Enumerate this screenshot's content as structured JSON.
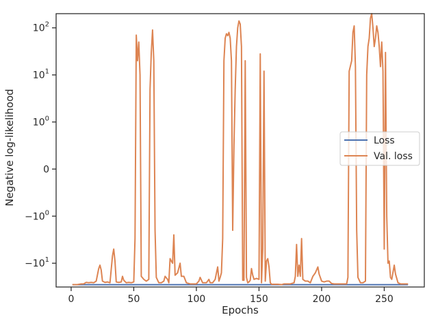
{
  "chart_data": {
    "type": "line",
    "title": "",
    "xlabel": "Epochs",
    "ylabel": "Negative log-likelihood",
    "xlim": [
      -12,
      282
    ],
    "ylim": [
      -32,
      200
    ],
    "yscale": "symlog",
    "ylinthresh": 1,
    "grid": false,
    "legend_position": "center-right",
    "x_ticks": [
      0,
      50,
      100,
      150,
      200,
      250
    ],
    "x_tick_labels": [
      "0",
      "50",
      "100",
      "150",
      "200",
      "250"
    ],
    "y_ticks": [
      -10,
      -1,
      0,
      1,
      10,
      100
    ],
    "y_tick_labels": [
      {
        "base": "−10",
        "exp": "1"
      },
      {
        "base": "−10",
        "exp": "0"
      },
      {
        "base": "0",
        "exp": ""
      },
      {
        "base": "10",
        "exp": "0"
      },
      {
        "base": "10",
        "exp": "1"
      },
      {
        "base": "10",
        "exp": "2"
      }
    ],
    "series": [
      {
        "name": "Loss",
        "color": "#4c72b0",
        "points": [
          [
            1,
            -28.6
          ],
          [
            269,
            -28.6
          ]
        ]
      },
      {
        "name": "Val. loss",
        "color": "#dd8452",
        "points": [
          [
            1,
            -28.5
          ],
          [
            5,
            -28.5
          ],
          [
            8,
            -27.5
          ],
          [
            10,
            -27.5
          ],
          [
            12,
            -25.5
          ],
          [
            14,
            -26
          ],
          [
            16,
            -25.5
          ],
          [
            18,
            -26
          ],
          [
            20,
            -24
          ],
          [
            22,
            -13
          ],
          [
            23,
            -11
          ],
          [
            24,
            -14
          ],
          [
            25,
            -24
          ],
          [
            27,
            -25.5
          ],
          [
            29,
            -25
          ],
          [
            31,
            -26
          ],
          [
            33,
            -7
          ],
          [
            34,
            -5
          ],
          [
            35,
            -9
          ],
          [
            36,
            -25
          ],
          [
            38,
            -25.5
          ],
          [
            40,
            -25
          ],
          [
            41,
            -19
          ],
          [
            42,
            -23
          ],
          [
            44,
            -26
          ],
          [
            46,
            -25.5
          ],
          [
            48,
            -26
          ],
          [
            50,
            -25
          ],
          [
            51,
            -3
          ],
          [
            52,
            70
          ],
          [
            53,
            20
          ],
          [
            54,
            50
          ],
          [
            55,
            10
          ],
          [
            56,
            -19
          ],
          [
            58,
            -22
          ],
          [
            60,
            -24
          ],
          [
            62,
            -22
          ],
          [
            63,
            5
          ],
          [
            64,
            30
          ],
          [
            65,
            90
          ],
          [
            66,
            20
          ],
          [
            67,
            -2
          ],
          [
            68,
            -20
          ],
          [
            70,
            -26
          ],
          [
            72,
            -26
          ],
          [
            74,
            -24
          ],
          [
            75,
            -19
          ],
          [
            77,
            -22
          ],
          [
            78,
            -26
          ],
          [
            79,
            -8
          ],
          [
            80,
            -9
          ],
          [
            81,
            -10
          ],
          [
            82,
            -2.5
          ],
          [
            83,
            -18
          ],
          [
            85,
            -16
          ],
          [
            87,
            -10
          ],
          [
            88,
            -19
          ],
          [
            90,
            -19
          ],
          [
            92,
            -26
          ],
          [
            95,
            -27.5
          ],
          [
            100,
            -27.5
          ],
          [
            102,
            -24
          ],
          [
            103,
            -20
          ],
          [
            105,
            -26
          ],
          [
            108,
            -26
          ],
          [
            110,
            -22
          ],
          [
            111,
            -26
          ],
          [
            113,
            -26
          ],
          [
            115,
            -22
          ],
          [
            117,
            -12
          ],
          [
            118,
            -24
          ],
          [
            119,
            -20
          ],
          [
            120,
            -16
          ],
          [
            121,
            -3
          ],
          [
            122,
            20
          ],
          [
            123,
            60
          ],
          [
            124,
            75
          ],
          [
            125,
            68
          ],
          [
            126,
            80
          ],
          [
            127,
            60
          ],
          [
            128,
            20
          ],
          [
            129,
            -2
          ],
          [
            130,
            0.5
          ],
          [
            131,
            5
          ],
          [
            132,
            40
          ],
          [
            133,
            100
          ],
          [
            134,
            140
          ],
          [
            135,
            120
          ],
          [
            136,
            40
          ],
          [
            137,
            -23
          ],
          [
            138,
            -23
          ],
          [
            139,
            20
          ],
          [
            140,
            -20
          ],
          [
            141,
            -26
          ],
          [
            142,
            -25
          ],
          [
            143,
            -23
          ],
          [
            144,
            -13
          ],
          [
            145,
            -18
          ],
          [
            146,
            -22
          ],
          [
            148,
            -21
          ],
          [
            150,
            -22
          ],
          [
            151,
            28
          ],
          [
            152,
            -26
          ],
          [
            153,
            -5
          ],
          [
            154,
            12
          ],
          [
            155,
            -24
          ],
          [
            156,
            -9
          ],
          [
            157,
            -8
          ],
          [
            158,
            -12
          ],
          [
            159,
            -26
          ],
          [
            160,
            -28
          ],
          [
            165,
            -28
          ],
          [
            168,
            -28.5
          ],
          [
            170,
            -27.5
          ],
          [
            175,
            -27.5
          ],
          [
            178,
            -26
          ],
          [
            179,
            -19
          ],
          [
            180,
            -4
          ],
          [
            181,
            -19
          ],
          [
            182,
            -11
          ],
          [
            183,
            -19
          ],
          [
            184,
            -3
          ],
          [
            185,
            -22
          ],
          [
            187,
            -24
          ],
          [
            189,
            -24
          ],
          [
            191,
            -26
          ],
          [
            193,
            -19
          ],
          [
            195,
            -16
          ],
          [
            197,
            -12
          ],
          [
            198,
            -17
          ],
          [
            200,
            -24
          ],
          [
            202,
            -25
          ],
          [
            204,
            -24
          ],
          [
            206,
            -24
          ],
          [
            208,
            -27
          ],
          [
            210,
            -27.5
          ],
          [
            220,
            -27.5
          ],
          [
            221,
            -20
          ],
          [
            222,
            12
          ],
          [
            224,
            20
          ],
          [
            225,
            80
          ],
          [
            226,
            110
          ],
          [
            227,
            15
          ],
          [
            228,
            -2
          ],
          [
            229,
            -20
          ],
          [
            231,
            -26
          ],
          [
            233,
            -26
          ],
          [
            235,
            -24
          ],
          [
            236,
            10
          ],
          [
            237,
            40
          ],
          [
            238,
            60
          ],
          [
            239,
            160
          ],
          [
            240,
            200
          ],
          [
            241,
            100
          ],
          [
            242,
            40
          ],
          [
            243,
            60
          ],
          [
            244,
            110
          ],
          [
            245,
            80
          ],
          [
            246,
            40
          ],
          [
            247,
            15
          ],
          [
            248,
            50
          ],
          [
            249,
            12
          ],
          [
            250,
            -5
          ],
          [
            251,
            30
          ],
          [
            252,
            -1
          ],
          [
            253,
            -10
          ],
          [
            254,
            -9
          ],
          [
            255,
            -20
          ],
          [
            256,
            -22
          ],
          [
            258,
            -11
          ],
          [
            259,
            -17
          ],
          [
            261,
            -26
          ],
          [
            263,
            -27.5
          ],
          [
            265,
            -27.5
          ],
          [
            267,
            -27.5
          ],
          [
            269,
            -27.5
          ]
        ]
      }
    ]
  }
}
